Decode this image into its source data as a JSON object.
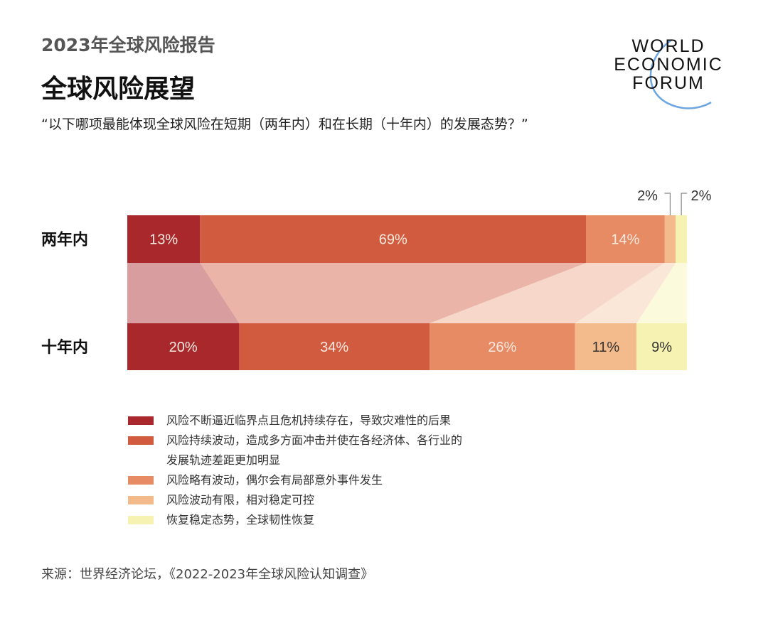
{
  "header": {
    "report": "2023年全球风险报告",
    "title": "全球风险展望",
    "question": "“以下哪项最能体现全球风险在短期（两年内）和在长期（十年内）的发展态势？”"
  },
  "logo": {
    "lines": [
      "WORLD",
      "ECONOMIC",
      "FORUM"
    ],
    "arc_color": "#4a90d9"
  },
  "chart_data": {
    "type": "bar",
    "orientation": "horizontal-stacked-100",
    "categories": [
      "两年内",
      "十年内"
    ],
    "series": [
      {
        "name": "风险不断逼近临界点且危机持续存在，导致灾难性的后果",
        "values": [
          13,
          20
        ],
        "labels": [
          "13%",
          "20%"
        ],
        "color": "#a8282b"
      },
      {
        "name": "风险持续波动，造成多方面冲击并使在各经济体、各行业的发展轨迹差距更加明显",
        "values": [
          69,
          34
        ],
        "labels": [
          "69%",
          "34%"
        ],
        "color": "#d05b3f"
      },
      {
        "name": "风险略有波动，偶尔会有局部意外事件发生",
        "values": [
          14,
          26
        ],
        "labels": [
          "14%",
          "26%"
        ],
        "color": "#e68b64"
      },
      {
        "name": "风险波动有限，相对稳定可控",
        "values": [
          2,
          11
        ],
        "labels": [
          "2%",
          "11%"
        ],
        "color": "#f3bb8c"
      },
      {
        "name": "恢复稳定态势，全球韧性恢复",
        "values": [
          2,
          9
        ],
        "labels": [
          "2%",
          "9%"
        ],
        "color": "#f6f3b2"
      }
    ],
    "xlim": [
      0,
      100
    ],
    "legend": "bottom"
  },
  "legend_lines": [
    [
      "风险不断逼近临界点且危机持续存在，导致灾难性的后果"
    ],
    [
      "风险持续波动，造成多方面冲击并使在各经济体、各行业的",
      "发展轨迹差距更加明显"
    ],
    [
      "风险略有波动，偶尔会有局部意外事件发生"
    ],
    [
      "风险波动有限，相对稳定可控"
    ],
    [
      "恢复稳定态势，全球韧性恢复"
    ]
  ],
  "source": "来源：世界经济论坛，《2022-2023年全球风险认知调查》"
}
